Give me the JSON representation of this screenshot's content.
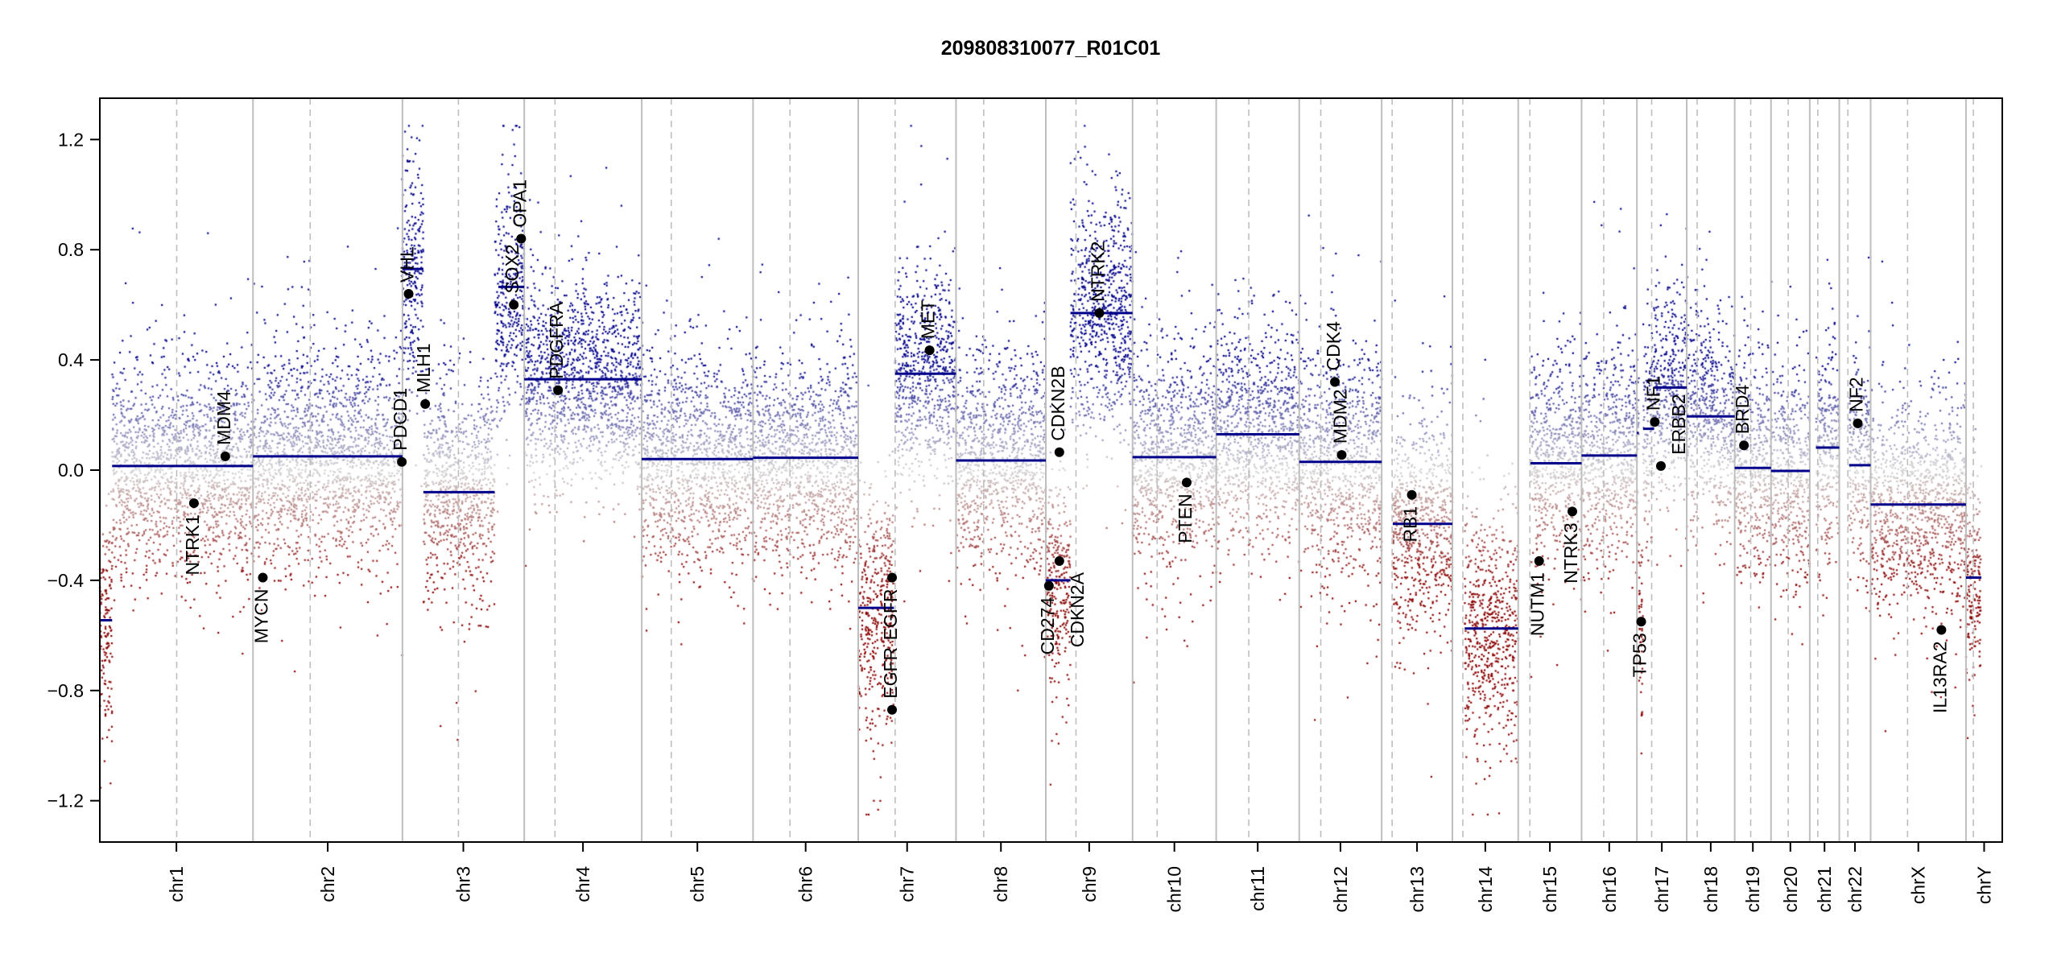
{
  "chart_data": {
    "type": "scatter",
    "title": "209808310077_R01C01",
    "xlabel": "",
    "ylabel": "",
    "ylim": [
      -1.35,
      1.35
    ],
    "clip": [
      -1.25,
      1.25
    ],
    "y_ticks": [
      {
        "value": 1.2,
        "label": "1.2"
      },
      {
        "value": 0.8,
        "label": "0.8"
      },
      {
        "value": 0.4,
        "label": "0.4"
      },
      {
        "value": 0.0,
        "label": "0.0"
      },
      {
        "value": -0.4,
        "label": "−0.4"
      },
      {
        "value": -0.8,
        "label": "−0.8"
      },
      {
        "value": -1.2,
        "label": "−1.2"
      }
    ],
    "grid": false,
    "chromosomes": [
      {
        "name": "chr1",
        "length": 249,
        "centromere": 125
      },
      {
        "name": "chr2",
        "length": 243,
        "centromere": 93
      },
      {
        "name": "chr3",
        "length": 198,
        "centromere": 91
      },
      {
        "name": "chr4",
        "length": 191,
        "centromere": 50
      },
      {
        "name": "chr5",
        "length": 181,
        "centromere": 48
      },
      {
        "name": "chr6",
        "length": 171,
        "centromere": 60
      },
      {
        "name": "chr7",
        "length": 159,
        "centromere": 60
      },
      {
        "name": "chr8",
        "length": 146,
        "centromere": 45
      },
      {
        "name": "chr9",
        "length": 141,
        "centromere": 49
      },
      {
        "name": "chr10",
        "length": 136,
        "centromere": 40
      },
      {
        "name": "chr11",
        "length": 135,
        "centromere": 53
      },
      {
        "name": "chr12",
        "length": 134,
        "centromere": 35
      },
      {
        "name": "chr13",
        "length": 115,
        "centromere": 17
      },
      {
        "name": "chr14",
        "length": 107,
        "centromere": 17
      },
      {
        "name": "chr15",
        "length": 103,
        "centromere": 19
      },
      {
        "name": "chr16",
        "length": 90,
        "centromere": 36
      },
      {
        "name": "chr17",
        "length": 81,
        "centromere": 24
      },
      {
        "name": "chr18",
        "length": 78,
        "centromere": 17
      },
      {
        "name": "chr19",
        "length": 59,
        "centromere": 26
      },
      {
        "name": "chr20",
        "length": 63,
        "centromere": 28
      },
      {
        "name": "chr21",
        "length": 48,
        "centromere": 13
      },
      {
        "name": "chr22",
        "length": 51,
        "centromere": 14
      },
      {
        "name": "chrX",
        "length": 155,
        "centromere": 60
      },
      {
        "name": "chrY",
        "length": 59,
        "centromere": 12
      }
    ],
    "segments": [
      {
        "chr": "chr1",
        "start": 0,
        "end": 20,
        "value": -0.545
      },
      {
        "chr": "chr1",
        "start": 20,
        "end": 249,
        "value": 0.015
      },
      {
        "chr": "chr2",
        "start": 0,
        "end": 243,
        "value": 0.05
      },
      {
        "chr": "chr3",
        "start": 0,
        "end": 34,
        "value": 0.73
      },
      {
        "chr": "chr3",
        "start": 34,
        "end": 150,
        "value": -0.08
      },
      {
        "chr": "chr3",
        "start": 150,
        "end": 156,
        "value": 0.6
      },
      {
        "chr": "chr3",
        "start": 156,
        "end": 198,
        "value": 0.665
      },
      {
        "chr": "chr4",
        "start": 0,
        "end": 191,
        "value": 0.33
      },
      {
        "chr": "chr5",
        "start": 0,
        "end": 181,
        "value": 0.04
      },
      {
        "chr": "chr6",
        "start": 0,
        "end": 171,
        "value": 0.045
      },
      {
        "chr": "chr7",
        "start": 0,
        "end": 58,
        "value": -0.5
      },
      {
        "chr": "chr7",
        "start": 60,
        "end": 159,
        "value": 0.35
      },
      {
        "chr": "chr8",
        "start": 0,
        "end": 146,
        "value": 0.035
      },
      {
        "chr": "chr9",
        "start": 0,
        "end": 40,
        "value": -0.4
      },
      {
        "chr": "chr9",
        "start": 40,
        "end": 141,
        "value": 0.57
      },
      {
        "chr": "chr10",
        "start": 0,
        "end": 136,
        "value": 0.047
      },
      {
        "chr": "chr11",
        "start": 0,
        "end": 135,
        "value": 0.13
      },
      {
        "chr": "chr12",
        "start": 0,
        "end": 134,
        "value": 0.03
      },
      {
        "chr": "chr13",
        "start": 18,
        "end": 115,
        "value": -0.195
      },
      {
        "chr": "chr14",
        "start": 20,
        "end": 107,
        "value": -0.575
      },
      {
        "chr": "chr15",
        "start": 20,
        "end": 103,
        "value": 0.025
      },
      {
        "chr": "chr16",
        "start": 0,
        "end": 90,
        "value": 0.053
      },
      {
        "chr": "chr17",
        "start": 0,
        "end": 3,
        "value": 0.135
      },
      {
        "chr": "chr17",
        "start": 3,
        "end": 10,
        "value": -0.555
      },
      {
        "chr": "chr17",
        "start": 10,
        "end": 28,
        "value": 0.15
      },
      {
        "chr": "chr17",
        "start": 28,
        "end": 81,
        "value": 0.3
      },
      {
        "chr": "chr18",
        "start": 0,
        "end": 78,
        "value": 0.195
      },
      {
        "chr": "chr19",
        "start": 0,
        "end": 59,
        "value": 0.008
      },
      {
        "chr": "chr20",
        "start": 0,
        "end": 63,
        "value": -0.003
      },
      {
        "chr": "chr21",
        "start": 10,
        "end": 48,
        "value": 0.082
      },
      {
        "chr": "chr22",
        "start": 16,
        "end": 51,
        "value": 0.018
      },
      {
        "chr": "chrX",
        "start": 0,
        "end": 155,
        "value": -0.125
      },
      {
        "chr": "chrY",
        "start": 0,
        "end": 25,
        "value": -0.39
      }
    ],
    "genes": [
      {
        "name": "NTRK1",
        "chr": "chr1",
        "pos": 153,
        "value": -0.12,
        "label_pos": "below"
      },
      {
        "name": "MDM4",
        "chr": "chr1",
        "pos": 204,
        "value": 0.05,
        "label_pos": "above"
      },
      {
        "name": "MYCN",
        "chr": "chr2",
        "pos": 16,
        "value": -0.39,
        "label_pos": "below"
      },
      {
        "name": "PDCD1",
        "chr": "chr2",
        "pos": 242,
        "value": 0.03,
        "label_pos": "above"
      },
      {
        "name": "VHL",
        "chr": "chr3",
        "pos": 10,
        "value": 0.64,
        "label_pos": "above"
      },
      {
        "name": "MLH1",
        "chr": "chr3",
        "pos": 37,
        "value": 0.24,
        "label_pos": "above"
      },
      {
        "name": "SOX2",
        "chr": "chr3",
        "pos": 181,
        "value": 0.6,
        "label_pos": "above"
      },
      {
        "name": "OPA1",
        "chr": "chr3",
        "pos": 193,
        "value": 0.84,
        "label_pos": "above"
      },
      {
        "name": "PDGFRA",
        "chr": "chr4",
        "pos": 55,
        "value": 0.29,
        "label_pos": "above"
      },
      {
        "name": "EGFR",
        "chr": "chr7",
        "pos": 55,
        "value": -0.39,
        "label_pos": "below"
      },
      {
        "name": "EGFR",
        "chr": "chr7",
        "pos": 55,
        "value": -0.87,
        "label_pos": "above"
      },
      {
        "name": "MET",
        "chr": "chr7",
        "pos": 116,
        "value": 0.435,
        "label_pos": "above"
      },
      {
        "name": "CD274",
        "chr": "chr9",
        "pos": 5,
        "value": -0.42,
        "label_pos": "below"
      },
      {
        "name": "CDKN2A",
        "chr": "chr9",
        "pos": 22,
        "value": -0.33,
        "label_pos": "below"
      },
      {
        "name": "CDKN2B",
        "chr": "chr9",
        "pos": 22,
        "value": 0.065,
        "label_pos": "above"
      },
      {
        "name": "NTRK2",
        "chr": "chr9",
        "pos": 87,
        "value": 0.57,
        "label_pos": "above"
      },
      {
        "name": "PTEN",
        "chr": "chr10",
        "pos": 88,
        "value": -0.045,
        "label_pos": "below"
      },
      {
        "name": "CDK4",
        "chr": "chr12",
        "pos": 58,
        "value": 0.32,
        "label_pos": "above"
      },
      {
        "name": "MDM2",
        "chr": "chr12",
        "pos": 69,
        "value": 0.055,
        "label_pos": "above"
      },
      {
        "name": "RB1",
        "chr": "chr13",
        "pos": 49,
        "value": -0.09,
        "label_pos": "below"
      },
      {
        "name": "NUTM1",
        "chr": "chr15",
        "pos": 34,
        "value": -0.33,
        "label_pos": "below"
      },
      {
        "name": "NTRK3",
        "chr": "chr15",
        "pos": 88,
        "value": -0.15,
        "label_pos": "below"
      },
      {
        "name": "TP53",
        "chr": "chr17",
        "pos": 7,
        "value": -0.55,
        "label_pos": "below"
      },
      {
        "name": "NF1",
        "chr": "chr17",
        "pos": 29,
        "value": 0.175,
        "label_pos": "above"
      },
      {
        "name": "ERBB2",
        "chr": "chr17",
        "pos": 39,
        "value": 0.015,
        "label_pos": "above"
      },
      {
        "name": "BRD4",
        "chr": "chr19",
        "pos": 15,
        "value": 0.09,
        "label_pos": "above"
      },
      {
        "name": "NF2",
        "chr": "chr22",
        "pos": 30,
        "value": 0.17,
        "label_pos": "above"
      },
      {
        "name": "IL13RA2",
        "chr": "chrX",
        "pos": 115,
        "value": -0.58,
        "label_pos": "below"
      }
    ],
    "colors": {
      "loss": "#8b0000",
      "neutral": "#d3d3d3",
      "gain": "#00008b",
      "segment": "#00008b",
      "chrom_line": "#bebebe",
      "gene_dot": "#000000"
    }
  }
}
